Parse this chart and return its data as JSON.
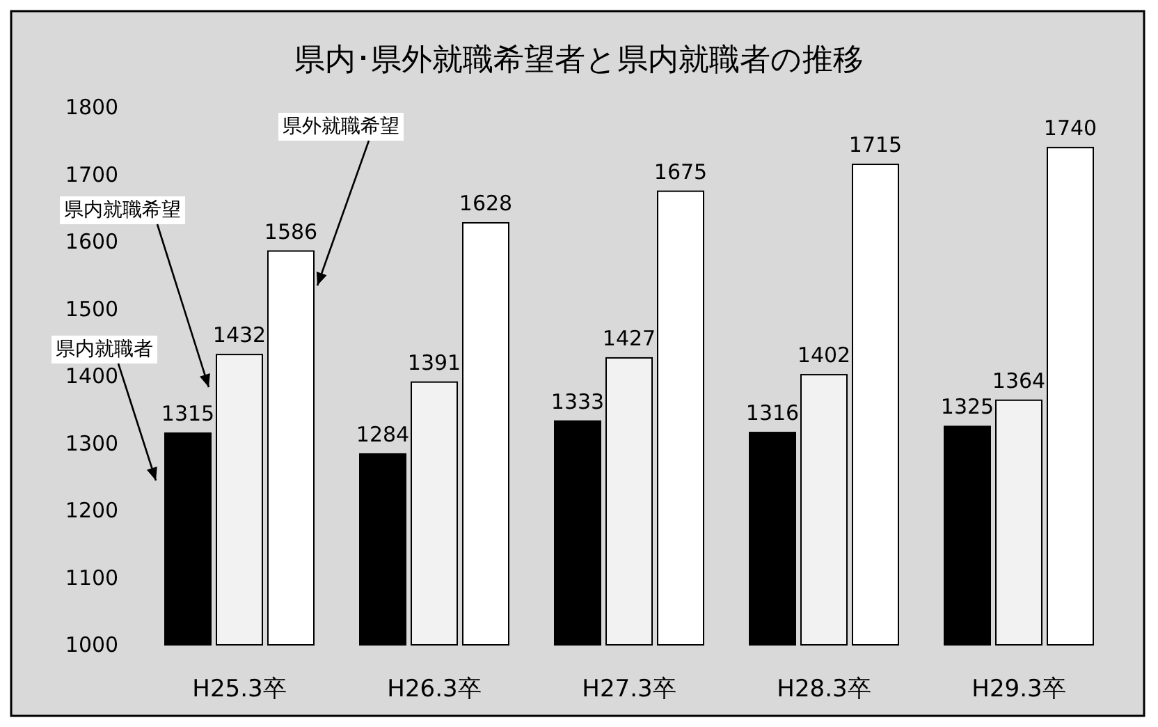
{
  "chart_data": {
    "type": "bar",
    "title": "県内･県外就職希望者と県内就職者の推移",
    "categories": [
      "H25.3卒",
      "H26.3卒",
      "H27.3卒",
      "H28.3卒",
      "H29.3卒"
    ],
    "series": [
      {
        "name": "県内就職者",
        "color": "#000000",
        "values": [
          1315,
          1284,
          1333,
          1316,
          1325
        ]
      },
      {
        "name": "県内就職希望",
        "color": "#f2f2f2",
        "values": [
          1432,
          1391,
          1427,
          1402,
          1364
        ]
      },
      {
        "name": "県外就職希望",
        "color": "#ffffff",
        "values": [
          1586,
          1628,
          1675,
          1715,
          1740
        ]
      }
    ],
    "ylim": [
      1000,
      1800
    ],
    "yticks": [
      1000,
      1100,
      1200,
      1300,
      1400,
      1500,
      1600,
      1700,
      1800
    ],
    "data_labels": true,
    "grid": false
  }
}
